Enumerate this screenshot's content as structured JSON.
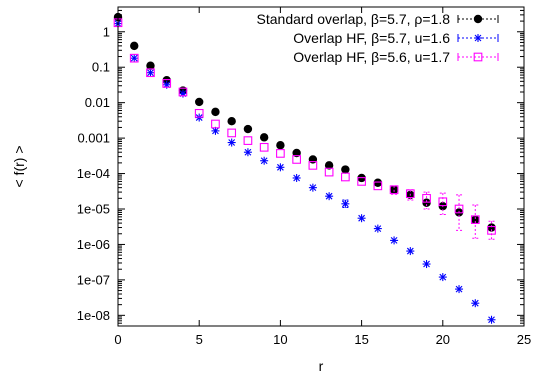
{
  "chart_data": {
    "type": "scatter",
    "xlabel": "r",
    "ylabel": "< f(r) >",
    "xlim": [
      0,
      25
    ],
    "ylim": [
      5e-09,
      5
    ],
    "yscale": "log",
    "legend_position": "top-right",
    "xticks": [
      0,
      5,
      10,
      15,
      20,
      25
    ],
    "xtick_labels": [
      "0",
      "5",
      "10",
      "15",
      "20",
      "25"
    ],
    "yticks": [
      1,
      0.1,
      0.01,
      0.001,
      0.0001,
      1e-05,
      1e-06,
      1e-07,
      1e-08
    ],
    "ytick_labels": [
      "1",
      "0.1",
      "0.01",
      "0.001",
      "1e-04",
      "1e-05",
      "1e-06",
      "1e-07",
      "1e-08"
    ],
    "series": [
      {
        "name": "Standard overlap, β=5.7, ρ=1.8",
        "color": "#000000",
        "marker": "filled-circle",
        "x": [
          0,
          1,
          2,
          3,
          4,
          5,
          6,
          7,
          8,
          9,
          10,
          11,
          12,
          13,
          14,
          15,
          16,
          17,
          18,
          19,
          20,
          21,
          22,
          23
        ],
        "y": [
          2.6,
          0.4,
          0.11,
          0.043,
          0.022,
          0.0105,
          0.0055,
          0.003,
          0.0018,
          0.00105,
          0.00063,
          0.00038,
          0.00025,
          0.00017,
          0.00013,
          7.5e-05,
          5.5e-05,
          3.5e-05,
          2.5e-05,
          1.5e-05,
          1.2e-05,
          8e-06,
          5e-06,
          3e-06
        ],
        "err_low": [
          2.6,
          0.4,
          0.11,
          0.043,
          0.022,
          0.0105,
          0.0055,
          0.003,
          0.0018,
          0.00105,
          0.00063,
          0.00038,
          0.00025,
          0.00017,
          0.00013,
          7.5e-05,
          5.5e-05,
          3.5e-05,
          2.5e-05,
          1.5e-05,
          1.2e-05,
          8e-06,
          5e-06,
          3e-06
        ],
        "err_high": [
          2.6,
          0.4,
          0.11,
          0.043,
          0.022,
          0.0105,
          0.0055,
          0.003,
          0.0018,
          0.00105,
          0.00063,
          0.00038,
          0.00025,
          0.00017,
          0.00013,
          7.5e-05,
          5.5e-05,
          3.5e-05,
          2.5e-05,
          1.5e-05,
          1.2e-05,
          8e-06,
          5e-06,
          3e-06
        ]
      },
      {
        "name": "Overlap HF, β=5.7, u=1.6",
        "color": "#0000ff",
        "marker": "asterisk",
        "x": [
          0,
          1,
          2,
          3,
          4,
          5,
          6,
          7,
          8,
          9,
          10,
          11,
          12,
          13,
          14,
          15,
          16,
          17,
          18,
          19,
          20,
          21,
          22,
          23
        ],
        "y": [
          1.7,
          0.18,
          0.07,
          0.032,
          0.018,
          0.0038,
          0.0016,
          0.00075,
          0.0004,
          0.00023,
          0.00015,
          7.5e-05,
          4e-05,
          2.3e-05,
          1.4e-05,
          5.5e-06,
          2.8e-06,
          1.3e-06,
          6.5e-07,
          2.8e-07,
          1.2e-07,
          5.5e-08,
          2.2e-08,
          7.5e-09
        ],
        "err_low": [
          1.7,
          0.18,
          0.07,
          0.032,
          0.018,
          0.0038,
          0.0016,
          0.00075,
          0.0004,
          0.00023,
          0.00015,
          7.5e-05,
          4e-05,
          2.3e-05,
          1.1e-05,
          5.5e-06,
          2.8e-06,
          1.3e-06,
          6.5e-07,
          2.8e-07,
          1.2e-07,
          5.5e-08,
          2.2e-08,
          7.5e-09
        ],
        "err_high": [
          1.7,
          0.18,
          0.07,
          0.032,
          0.018,
          0.0038,
          0.0016,
          0.00075,
          0.0004,
          0.00023,
          0.00015,
          7.5e-05,
          4e-05,
          2.3e-05,
          1.8e-05,
          5.5e-06,
          2.8e-06,
          1.3e-06,
          6.5e-07,
          2.8e-07,
          1.2e-07,
          5.5e-08,
          2.2e-08,
          7.5e-09
        ]
      },
      {
        "name": "Overlap HF, β=5.6, u=1.7",
        "color": "#ff00ff",
        "marker": "open-square",
        "x": [
          0,
          1,
          2,
          3,
          4,
          5,
          6,
          7,
          8,
          9,
          10,
          11,
          12,
          13,
          14,
          15,
          16,
          17,
          18,
          19,
          20,
          21,
          22,
          23
        ],
        "y": [
          1.8,
          0.18,
          0.07,
          0.035,
          0.02,
          0.005,
          0.0025,
          0.0014,
          0.00085,
          0.00055,
          0.00037,
          0.00025,
          0.00017,
          0.00011,
          8e-05,
          6e-05,
          4.5e-05,
          3.5e-05,
          2.7e-05,
          2e-05,
          1.6e-05,
          1e-05,
          5e-06,
          2.5e-06
        ],
        "err_low": [
          1.8,
          0.18,
          0.07,
          0.035,
          0.02,
          0.005,
          0.0025,
          0.0014,
          0.00085,
          0.00055,
          0.00037,
          0.00025,
          0.00017,
          0.00011,
          8e-05,
          6e-05,
          4.5e-05,
          2.6e-05,
          1.8e-05,
          1e-05,
          7e-06,
          2.5e-06,
          1.5e-06,
          1.4e-06
        ],
        "err_high": [
          1.8,
          0.18,
          0.07,
          0.035,
          0.02,
          0.005,
          0.0025,
          0.0014,
          0.00085,
          0.00055,
          0.00037,
          0.00025,
          0.00017,
          0.00011,
          8e-05,
          6e-05,
          4.5e-05,
          4.5e-05,
          3.5e-05,
          3e-05,
          2.8e-05,
          2.5e-05,
          1.3e-05,
          4.5e-06
        ]
      }
    ]
  }
}
